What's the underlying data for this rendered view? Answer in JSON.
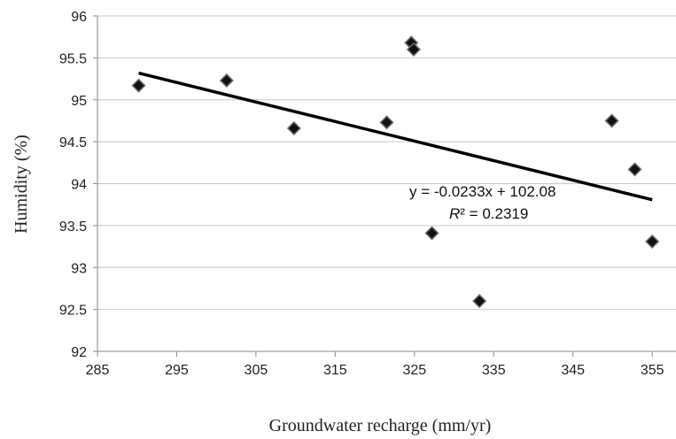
{
  "chart_data": {
    "type": "scatter",
    "xlabel": "Groundwater recharge (mm/yr)",
    "ylabel": "Humidity (%)",
    "xlim": [
      285,
      358
    ],
    "ylim": [
      92,
      96
    ],
    "xticks": [
      285,
      295,
      305,
      315,
      325,
      335,
      345,
      355
    ],
    "yticks": [
      92,
      92.5,
      93,
      93.5,
      94,
      94.5,
      95,
      95.5,
      96
    ],
    "xtick_labels": [
      "285",
      "295",
      "305",
      "315",
      "325",
      "335",
      "345",
      "355"
    ],
    "ytick_labels": [
      "92",
      "92.5",
      "93",
      "93.5",
      "94",
      "94.5",
      "95",
      "95.5",
      "96"
    ],
    "grid": "horizontal",
    "legend": "none",
    "marker": "diamond",
    "marker_color": "#111111",
    "points": [
      {
        "x": 290.2,
        "y": 95.17
      },
      {
        "x": 301.3,
        "y": 95.23
      },
      {
        "x": 309.8,
        "y": 94.66
      },
      {
        "x": 321.5,
        "y": 94.73
      },
      {
        "x": 324.6,
        "y": 95.68
      },
      {
        "x": 324.9,
        "y": 95.6
      },
      {
        "x": 327.2,
        "y": 93.41
      },
      {
        "x": 333.2,
        "y": 92.6
      },
      {
        "x": 349.9,
        "y": 94.75
      },
      {
        "x": 352.8,
        "y": 94.17
      },
      {
        "x": 355.0,
        "y": 93.31
      }
    ],
    "trendline": {
      "slope": -0.0233,
      "intercept": 102.08,
      "x_start": 290.2,
      "x_end": 355.0,
      "color": "#000000"
    },
    "annotations": {
      "equation": "y = -0.0233x + 102.08",
      "r2_label": "R",
      "r2_suffix": "² = 0.2319"
    }
  }
}
